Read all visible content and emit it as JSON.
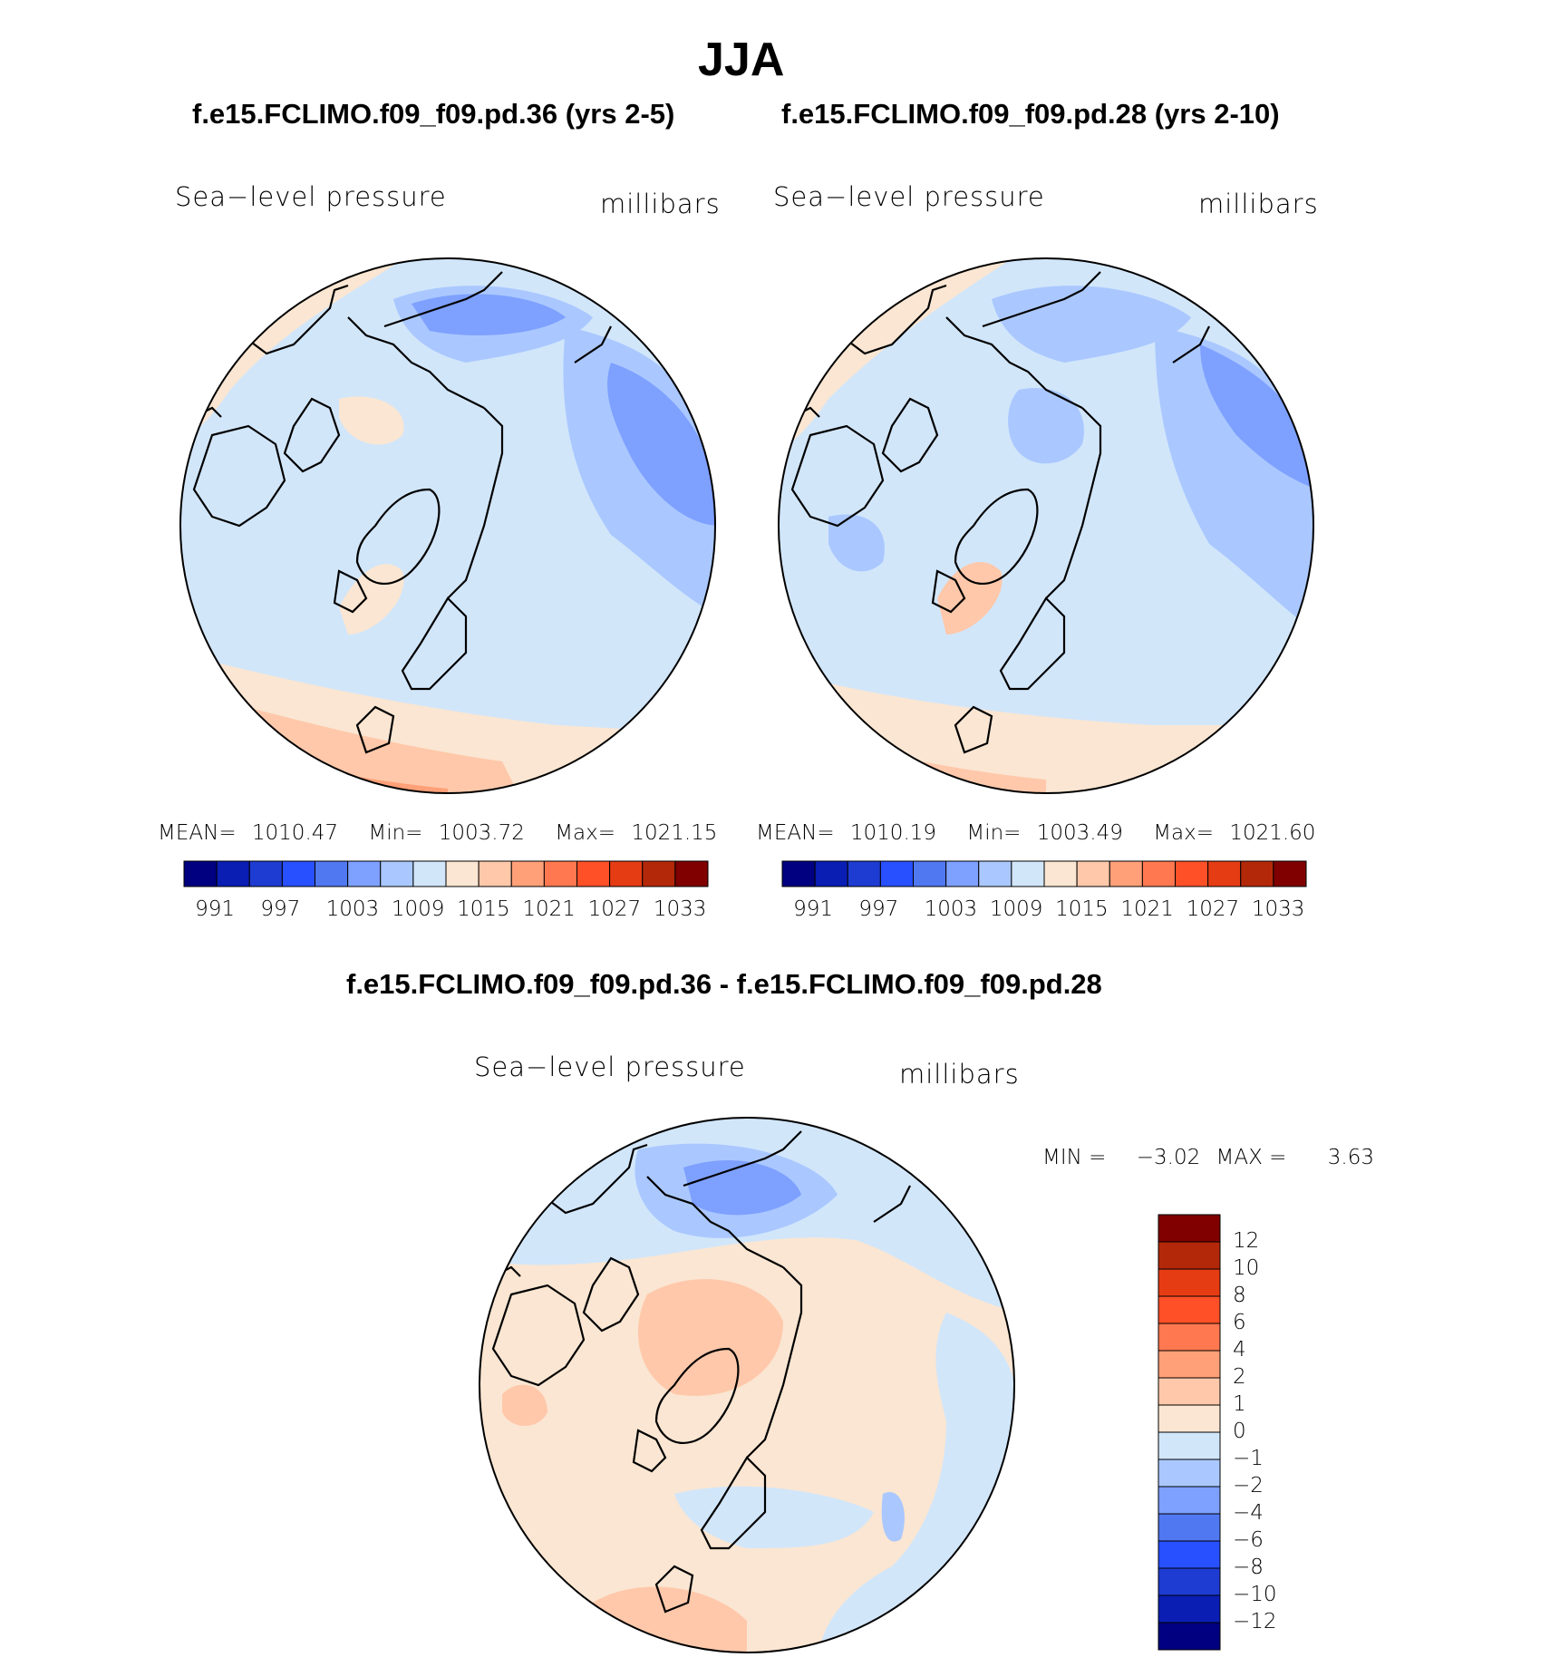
{
  "title": "JJA",
  "panels": [
    {
      "case": "f.e15.FCLIMO.f09_f09.pd.36 (yrs 2-5)",
      "variable": "Sea−level pressure",
      "units": "millibars",
      "stats": {
        "mean_label": "MEAN=",
        "mean": "1010.47",
        "min_label": "Min=",
        "min": "1003.72",
        "max_label": "Max=",
        "max": "1021.15"
      },
      "colorbar_ticks": [
        "991",
        "997",
        "1003",
        "1009",
        "1015",
        "1021",
        "1027",
        "1033"
      ]
    },
    {
      "case": "f.e15.FCLIMO.f09_f09.pd.28 (yrs 2-10)",
      "variable": "Sea−level pressure",
      "units": "millibars",
      "stats": {
        "mean_label": "MEAN=",
        "mean": "1010.19",
        "min_label": "Min=",
        "min": "1003.49",
        "max_label": "Max=",
        "max": "1021.60"
      },
      "colorbar_ticks": [
        "991",
        "997",
        "1003",
        "1009",
        "1015",
        "1021",
        "1027",
        "1033"
      ]
    }
  ],
  "diff": {
    "title": "f.e15.FCLIMO.f09_f09.pd.36 - f.e15.FCLIMO.f09_f09.pd.28",
    "variable": "Sea−level pressure",
    "units": "millibars",
    "minmax": {
      "min_label": "MIN =",
      "min": "−3.02",
      "max_label": "MAX =",
      "max": "3.63"
    },
    "colorbar_ticks": [
      "12",
      "10",
      "8",
      "6",
      "4",
      "2",
      "1",
      "0",
      "−1",
      "−2",
      "−4",
      "−6",
      "−8",
      "−10",
      "−12"
    ]
  },
  "colors": {
    "abs_scale": [
      "#000080",
      "#0a1eb4",
      "#1e3cd2",
      "#2850ff",
      "#5078f0",
      "#7ea0ff",
      "#aac8ff",
      "#d2e6fa",
      "#fae6d2",
      "#ffc8aa",
      "#ffa078",
      "#ff7850",
      "#ff5028",
      "#e63c14",
      "#b4280a",
      "#800000"
    ],
    "diff_scale": [
      "#000080",
      "#0a1eb4",
      "#1e3cd2",
      "#2850ff",
      "#5078f0",
      "#7ea0ff",
      "#aac8ff",
      "#d2e6fa",
      "#fae6d2",
      "#ffc8aa",
      "#ffa078",
      "#ff7850",
      "#ff5028",
      "#e63c14",
      "#b4280a",
      "#800000"
    ]
  }
}
